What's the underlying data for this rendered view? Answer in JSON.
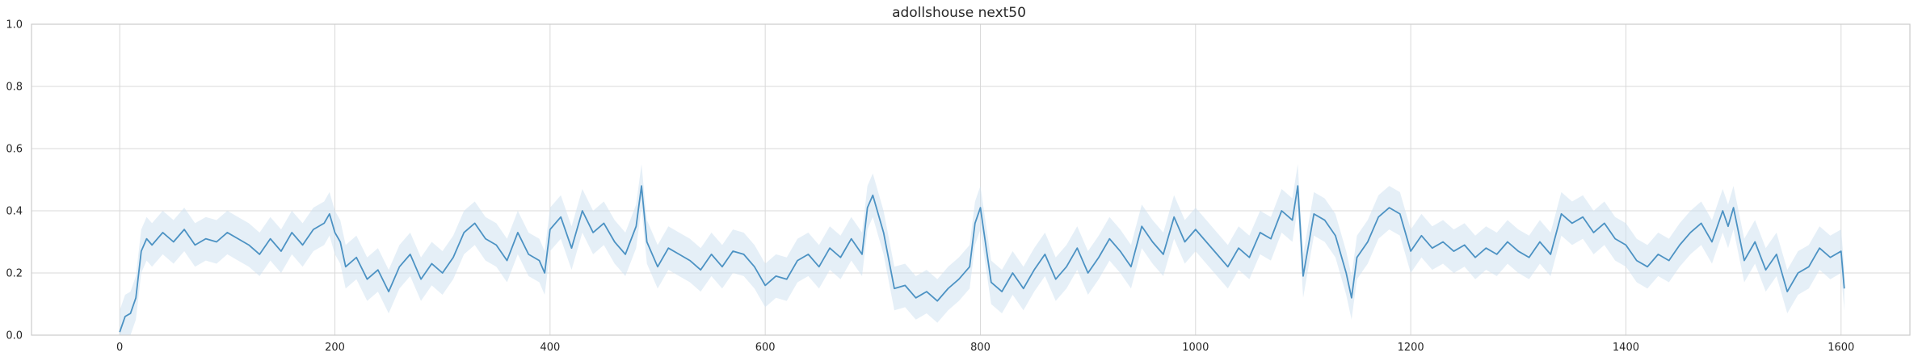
{
  "chart_data": {
    "type": "line",
    "title": "adollshouse next50",
    "xlabel": "",
    "ylabel": "",
    "xlim": [
      -82,
      1664
    ],
    "ylim": [
      0.0,
      1.0
    ],
    "x_ticks": [
      0,
      200,
      400,
      600,
      800,
      1000,
      1200,
      1400,
      1600
    ],
    "x_tick_labels": [
      "0",
      "200",
      "400",
      "600",
      "800",
      "1000",
      "1200",
      "1400",
      "1600"
    ],
    "y_ticks": [
      0.0,
      0.2,
      0.4,
      0.6,
      0.8,
      1.0
    ],
    "y_tick_labels": [
      "0.0",
      "0.2",
      "0.4",
      "0.6",
      "0.8",
      "1.0"
    ],
    "grid": true,
    "legend": "none",
    "colors": {
      "line": "#4c92c3",
      "band": "#cfe1f1",
      "grid": "#d9d9d9",
      "spine": "#cccccc",
      "text": "#262626"
    },
    "band_halfwidth": 0.07,
    "series": [
      {
        "x": [
          0,
          5,
          10,
          15,
          20,
          25,
          30,
          40,
          50,
          60,
          70,
          80,
          90,
          100,
          110,
          120,
          130,
          140,
          150,
          160,
          170,
          180,
          190,
          195,
          200,
          205,
          210,
          220,
          230,
          240,
          250,
          260,
          270,
          280,
          290,
          300,
          310,
          320,
          330,
          340,
          350,
          360,
          370,
          380,
          390,
          395,
          400,
          410,
          420,
          430,
          440,
          450,
          460,
          470,
          480,
          485,
          490,
          500,
          510,
          520,
          530,
          540,
          550,
          560,
          570,
          580,
          590,
          600,
          610,
          620,
          630,
          640,
          650,
          660,
          670,
          680,
          690,
          695,
          700,
          710,
          720,
          730,
          740,
          750,
          760,
          770,
          780,
          790,
          795,
          800,
          810,
          820,
          830,
          840,
          850,
          860,
          870,
          880,
          890,
          900,
          910,
          920,
          930,
          940,
          950,
          960,
          970,
          980,
          990,
          1000,
          1010,
          1020,
          1030,
          1040,
          1050,
          1060,
          1070,
          1080,
          1090,
          1095,
          1100,
          1110,
          1120,
          1130,
          1140,
          1145,
          1150,
          1160,
          1170,
          1180,
          1190,
          1200,
          1210,
          1220,
          1230,
          1240,
          1250,
          1260,
          1270,
          1280,
          1290,
          1300,
          1310,
          1320,
          1330,
          1340,
          1350,
          1360,
          1370,
          1380,
          1390,
          1400,
          1410,
          1420,
          1430,
          1440,
          1450,
          1460,
          1470,
          1480,
          1490,
          1495,
          1500,
          1510,
          1520,
          1530,
          1540,
          1550,
          1560,
          1570,
          1580,
          1590,
          1600,
          1603
        ],
        "y": [
          0.01,
          0.06,
          0.07,
          0.12,
          0.27,
          0.31,
          0.29,
          0.33,
          0.3,
          0.34,
          0.29,
          0.31,
          0.3,
          0.33,
          0.31,
          0.29,
          0.26,
          0.31,
          0.27,
          0.33,
          0.29,
          0.34,
          0.36,
          0.39,
          0.33,
          0.3,
          0.22,
          0.25,
          0.18,
          0.21,
          0.14,
          0.22,
          0.26,
          0.18,
          0.23,
          0.2,
          0.25,
          0.33,
          0.36,
          0.31,
          0.29,
          0.24,
          0.33,
          0.26,
          0.24,
          0.2,
          0.34,
          0.38,
          0.28,
          0.4,
          0.33,
          0.36,
          0.3,
          0.26,
          0.35,
          0.48,
          0.3,
          0.22,
          0.28,
          0.26,
          0.24,
          0.21,
          0.26,
          0.22,
          0.27,
          0.26,
          0.22,
          0.16,
          0.19,
          0.18,
          0.24,
          0.26,
          0.22,
          0.28,
          0.25,
          0.31,
          0.26,
          0.41,
          0.45,
          0.33,
          0.15,
          0.16,
          0.12,
          0.14,
          0.11,
          0.15,
          0.18,
          0.22,
          0.36,
          0.41,
          0.17,
          0.14,
          0.2,
          0.15,
          0.21,
          0.26,
          0.18,
          0.22,
          0.28,
          0.2,
          0.25,
          0.31,
          0.27,
          0.22,
          0.35,
          0.3,
          0.26,
          0.38,
          0.3,
          0.34,
          0.3,
          0.26,
          0.22,
          0.28,
          0.25,
          0.33,
          0.31,
          0.4,
          0.37,
          0.48,
          0.19,
          0.39,
          0.37,
          0.32,
          0.2,
          0.12,
          0.25,
          0.3,
          0.38,
          0.41,
          0.39,
          0.27,
          0.32,
          0.28,
          0.3,
          0.27,
          0.29,
          0.25,
          0.28,
          0.26,
          0.3,
          0.27,
          0.25,
          0.3,
          0.26,
          0.39,
          0.36,
          0.38,
          0.33,
          0.36,
          0.31,
          0.29,
          0.24,
          0.22,
          0.26,
          0.24,
          0.29,
          0.33,
          0.36,
          0.3,
          0.4,
          0.35,
          0.41,
          0.24,
          0.3,
          0.21,
          0.26,
          0.14,
          0.2,
          0.22,
          0.28,
          0.25,
          0.27,
          0.15
        ]
      }
    ]
  }
}
